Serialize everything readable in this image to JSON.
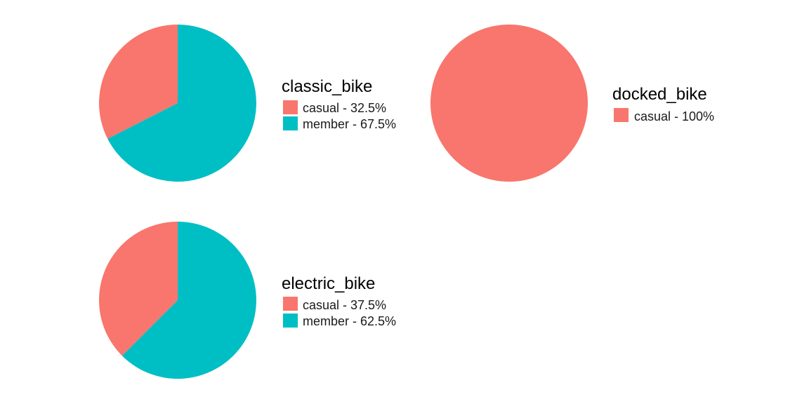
{
  "colors": {
    "casual": "#F8766D",
    "member": "#00BFC4"
  },
  "chart_data": [
    {
      "type": "pie",
      "title": "classic_bike",
      "slices": [
        {
          "name": "casual",
          "value": 32.5,
          "label": "casual - 32.5%",
          "color": "#F8766D"
        },
        {
          "name": "member",
          "value": 67.5,
          "label": "member - 67.5%",
          "color": "#00BFC4"
        }
      ],
      "legend_position": "right"
    },
    {
      "type": "pie",
      "title": "docked_bike",
      "slices": [
        {
          "name": "casual",
          "value": 100,
          "label": "casual - 100%",
          "color": "#F8766D"
        }
      ],
      "legend_position": "right"
    },
    {
      "type": "pie",
      "title": "electric_bike",
      "slices": [
        {
          "name": "casual",
          "value": 37.5,
          "label": "casual - 37.5%",
          "color": "#F8766D"
        },
        {
          "name": "member",
          "value": 62.5,
          "label": "member - 62.5%",
          "color": "#00BFC4"
        }
      ],
      "legend_position": "right"
    }
  ]
}
